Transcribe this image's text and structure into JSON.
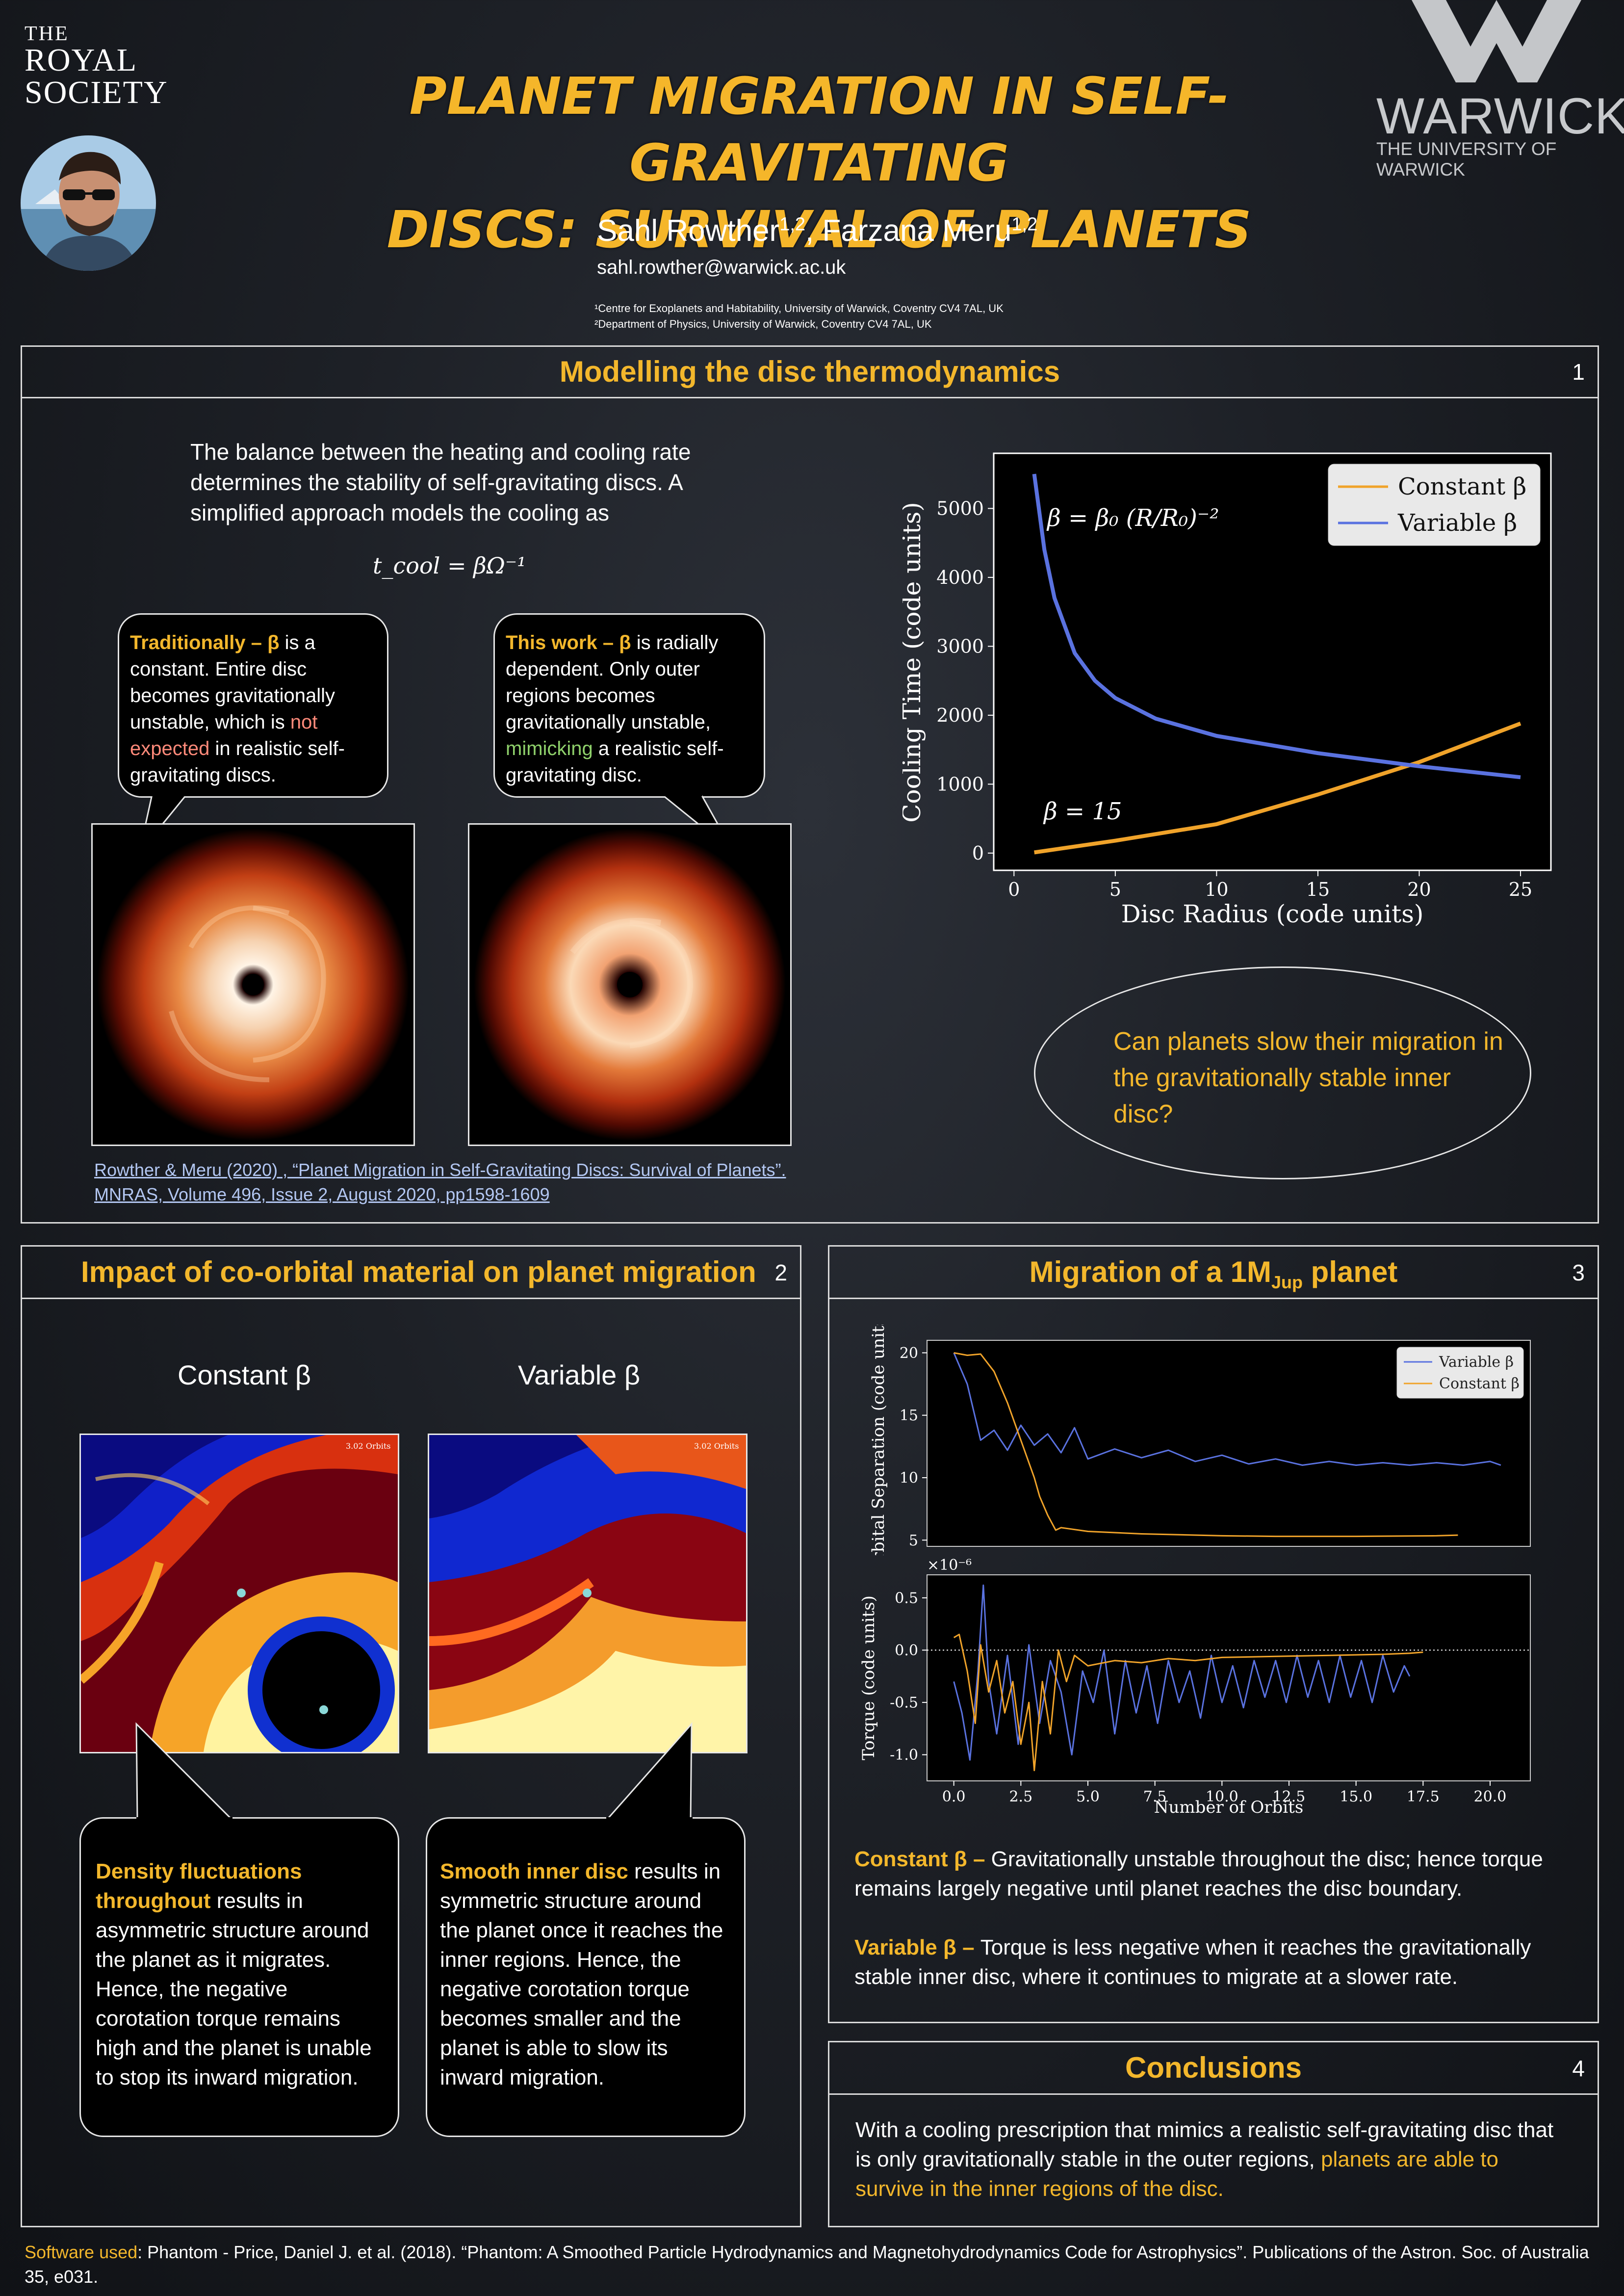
{
  "header": {
    "royal_the": "THE",
    "royal_line1": "ROYAL",
    "royal_line2": "SOCIETY",
    "title_line1": "PLANET MIGRATION IN SELF-GRAVITATING",
    "title_line2": "DISCS: SURVIVAL OF PLANETS",
    "author1": "Sahl Rowther",
    "author1_sup": "1,2",
    "author_sep": ", ",
    "author2": "Farzana Meru",
    "author2_sup": "1,2",
    "email": "sahl.rowther@warwick.ac.uk",
    "affiliation1": "¹Centre for Exoplanets and Habitability, University of Warwick, Coventry CV4 7AL, UK",
    "affiliation2": "²Department of Physics, University of Warwick, Coventry CV4 7AL, UK",
    "warwick_word": "WARWICK",
    "warwick_sub": "THE UNIVERSITY OF WARWICK"
  },
  "panel1": {
    "title": "Modelling the disc thermodynamics",
    "number": "1",
    "intro": "The balance between the heating and cooling rate determines the stability of self-gravitating discs. A simplified approach models the cooling as",
    "equation": "t_cool = βΩ⁻¹",
    "bubble_left": {
      "lead": "Traditionally – β",
      "t1": " is a constant. Entire disc becomes gravitationally unstable, which is ",
      "highlight": "not expected",
      "t2": " in realistic self-gravitating discs."
    },
    "bubble_right": {
      "lead": "This work – β",
      "t1": " is radially dependent. Only outer regions becomes gravitationally unstable, ",
      "highlight": "mimicking",
      "t2": " a realistic self-gravitating disc."
    },
    "citation_line1": "Rowther & Meru (2020) , “Planet Migration in Self-Gravitating Discs: Survival of Planets”.",
    "citation_line2": "MNRAS, Volume 496, Issue 2, August 2020, pp1598-1609",
    "question": "Can planets slow their migration in the gravitationally stable inner disc?"
  },
  "panel2": {
    "title": "Impact of co-orbital material on planet migration",
    "number": "2",
    "label_constant": "Constant β",
    "label_variable": "Variable β",
    "orbits_label": "3.02 Orbits",
    "bubble_left_lead": "Density fluctuations throughout",
    "bubble_left_text": " results in asymmetric structure around the planet as it migrates. Hence, the negative corotation torque remains high and the planet is unable to stop its inward migration.",
    "bubble_right_lead": "Smooth inner disc",
    "bubble_right_text": " results in symmetric structure around the planet once it reaches the inner regions. Hence, the negative corotation torque becomes smaller and the planet is able to slow its inward migration."
  },
  "panel3": {
    "title": "Migration of a 1M",
    "title_sub": "Jup",
    "title_end": " planet",
    "number": "3",
    "constant_lead": "Constant β –",
    "constant_text": " Gravitationally unstable throughout the disc; hence torque remains largely negative until planet reaches the disc boundary.",
    "variable_lead": "Variable β –",
    "variable_text": " Torque is less negative when it reaches the gravitationally stable inner disc, where it continues to migrate at a slower rate."
  },
  "panel4": {
    "title": "Conclusions",
    "number": "4",
    "text": "With a cooling prescription that mimics a realistic self-gravitating disc that is only gravitationally stable in the outer regions, ",
    "highlight": "planets are able to survive in the inner regions of the disc."
  },
  "footer": {
    "lead": "Software used",
    "text": ": Phantom - Price, Daniel J. et al. (2018). “Phantom: A Smoothed Particle Hydrodynamics and Magnetohydrodynamics Code for Astrophysics”. Publications of the Astron. Soc. of Australia 35, e031."
  },
  "colors": {
    "accent": "#f3b72c",
    "constant": "#f0a32a",
    "variable": "#5a72e0"
  },
  "chart_data": [
    {
      "type": "line",
      "xlabel": "Disc Radius (code units)",
      "ylabel": "Cooling Time (code units)",
      "xlim": [
        -1,
        26.5
      ],
      "ylim": [
        -250,
        5800
      ],
      "xticks": [
        0,
        5,
        10,
        15,
        20,
        25
      ],
      "yticks": [
        0,
        1000,
        2000,
        3000,
        4000,
        5000
      ],
      "legend_position": "top-right",
      "annotations": [
        "β = β₀ (R/R₀)⁻²",
        "β = 15"
      ],
      "series": [
        {
          "name": "Constant β",
          "color": "#f0a32a",
          "x": [
            1,
            5,
            10,
            15,
            20,
            25
          ],
          "y": [
            10,
            180,
            420,
            850,
            1320,
            1880
          ]
        },
        {
          "name": "Variable β",
          "color": "#5a72e0",
          "x": [
            1,
            1.5,
            2,
            3,
            4,
            5,
            7,
            10,
            15,
            20,
            25
          ],
          "y": [
            5500,
            4400,
            3700,
            2900,
            2500,
            2250,
            1950,
            1700,
            1450,
            1260,
            1100
          ]
        }
      ]
    },
    {
      "type": "line",
      "xlabel": "",
      "ylabel": "Orbital Separation (code units)",
      "xlim": [
        -1,
        21.5
      ],
      "ylim": [
        4.5,
        21
      ],
      "yticks": [
        5,
        10,
        15,
        20
      ],
      "legend_position": "top-right",
      "series": [
        {
          "name": "Variable β",
          "color": "#5a72e0",
          "x": [
            0,
            0.5,
            1,
            1.5,
            2,
            2.5,
            3,
            3.5,
            4,
            4.5,
            5,
            6,
            7,
            8,
            9,
            10,
            11,
            12,
            13,
            14,
            15,
            16,
            17,
            18,
            19,
            20,
            20.4
          ],
          "y": [
            20,
            17.5,
            13,
            13.8,
            12.2,
            14.2,
            12.6,
            13.5,
            12,
            14,
            11.5,
            12.3,
            11.6,
            12.2,
            11.3,
            11.8,
            11.1,
            11.5,
            11.0,
            11.3,
            11.0,
            11.2,
            11.0,
            11.2,
            11.0,
            11.3,
            11.0
          ]
        },
        {
          "name": "Constant β",
          "color": "#f0a32a",
          "x": [
            0,
            0.5,
            1,
            1.5,
            2,
            2.5,
            3,
            3.2,
            3.5,
            3.8,
            4,
            5,
            7,
            10,
            12,
            15,
            18,
            18.8
          ],
          "y": [
            20,
            19.8,
            19.9,
            18.5,
            16,
            13,
            10,
            8.5,
            7,
            5.8,
            6.0,
            5.7,
            5.5,
            5.35,
            5.3,
            5.3,
            5.35,
            5.4
          ]
        }
      ]
    },
    {
      "type": "line",
      "xlabel": "Number of Orbits",
      "ylabel": "Torque (code units)",
      "scale_label": "×10⁻⁶",
      "xlim": [
        -1,
        21.5
      ],
      "ylim": [
        -1.25,
        0.72
      ],
      "xticks": [
        0.0,
        2.5,
        5.0,
        7.5,
        10.0,
        12.5,
        15.0,
        17.5,
        20.0
      ],
      "yticks": [
        -1.0,
        -0.5,
        0.0,
        0.5
      ],
      "series": [
        {
          "name": "Variable β",
          "color": "#5a72e0",
          "x": [
            0,
            0.3,
            0.6,
            0.9,
            1.1,
            1.3,
            1.6,
            2.0,
            2.4,
            2.8,
            3.2,
            3.6,
            4.0,
            4.4,
            4.8,
            5.2,
            5.6,
            6.0,
            6.4,
            6.8,
            7.2,
            7.6,
            8.0,
            8.4,
            8.8,
            9.2,
            9.6,
            10.0,
            10.4,
            10.8,
            11.2,
            11.6,
            12.0,
            12.4,
            12.8,
            13.2,
            13.6,
            14.0,
            14.4,
            14.8,
            15.2,
            15.6,
            16.0,
            16.4,
            16.8,
            17.0
          ],
          "y": [
            -0.3,
            -0.6,
            -1.05,
            -0.2,
            0.62,
            -0.3,
            -0.8,
            -0.05,
            -0.9,
            0.05,
            -0.7,
            -0.1,
            -0.4,
            -1.0,
            -0.2,
            -0.5,
            0.0,
            -0.8,
            -0.1,
            -0.6,
            -0.15,
            -0.7,
            -0.1,
            -0.5,
            -0.2,
            -0.65,
            -0.05,
            -0.5,
            -0.15,
            -0.55,
            -0.1,
            -0.45,
            -0.1,
            -0.5,
            -0.05,
            -0.45,
            -0.1,
            -0.5,
            -0.05,
            -0.45,
            -0.1,
            -0.5,
            -0.05,
            -0.4,
            -0.15,
            -0.25
          ]
        },
        {
          "name": "Constant β",
          "color": "#f0a32a",
          "x": [
            0,
            0.2,
            0.5,
            0.8,
            1.0,
            1.3,
            1.6,
            1.9,
            2.2,
            2.5,
            2.8,
            3.0,
            3.3,
            3.6,
            3.9,
            4.2,
            4.5,
            5,
            6,
            7,
            8,
            9,
            10,
            12,
            14,
            16,
            17,
            17.5
          ],
          "y": [
            0.12,
            0.15,
            -0.2,
            -0.7,
            0.05,
            -0.4,
            -0.1,
            -0.6,
            -0.3,
            -0.9,
            -0.5,
            -1.15,
            -0.3,
            -0.8,
            0.0,
            -0.3,
            -0.05,
            -0.15,
            -0.1,
            -0.12,
            -0.08,
            -0.1,
            -0.07,
            -0.06,
            -0.05,
            -0.04,
            -0.03,
            -0.02
          ]
        }
      ]
    }
  ]
}
